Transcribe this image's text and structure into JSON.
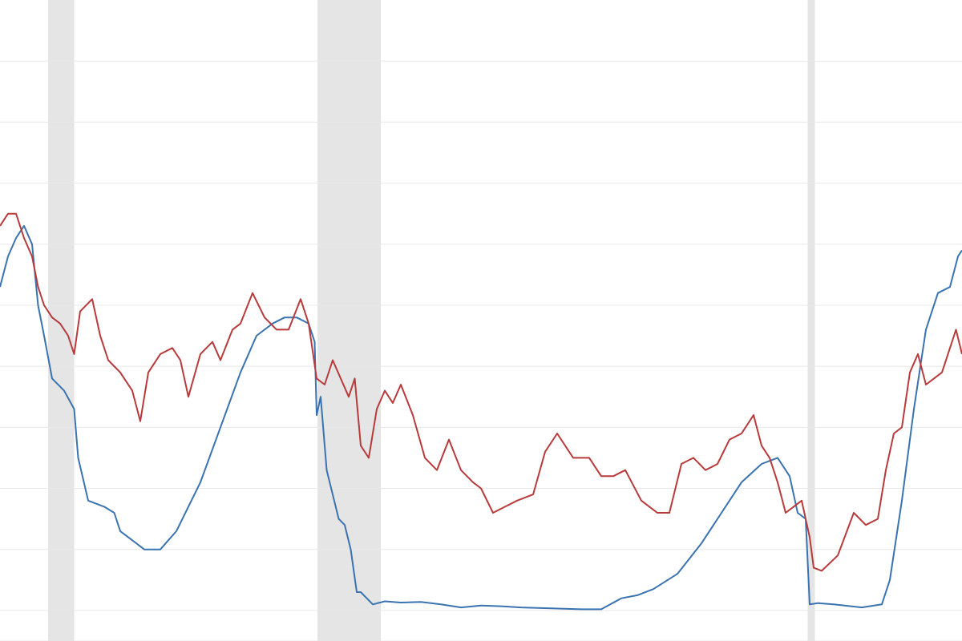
{
  "chart_data": {
    "type": "line",
    "title": "",
    "xlabel": "",
    "ylabel": "",
    "xlim": [
      2000.0,
      2024.0
    ],
    "ylim": [
      -0.5,
      10.0
    ],
    "grid": true,
    "legend": "none",
    "gridline_values": [
      9.0,
      8.0,
      7.0,
      6.0,
      5.0,
      4.0,
      3.0,
      2.0,
      1.0,
      0.0,
      -0.5
    ],
    "recessions": [
      {
        "start": 2001.2,
        "end": 2001.85
      },
      {
        "start": 2007.92,
        "end": 2009.5
      },
      {
        "start": 2020.15,
        "end": 2020.33
      }
    ],
    "series": [
      {
        "color": "#3a73b0",
        "x": [
          2000.0,
          2000.2,
          2000.4,
          2000.6,
          2000.8,
          2000.95,
          2001.1,
          2001.3,
          2001.6,
          2001.85,
          2001.95,
          2002.2,
          2002.6,
          2002.85,
          2003.0,
          2003.4,
          2003.6,
          2004.0,
          2004.4,
          2005.0,
          2005.5,
          2006.0,
          2006.4,
          2006.8,
          2007.1,
          2007.4,
          2007.7,
          2007.85,
          2007.9,
          2008.0,
          2008.15,
          2008.3,
          2008.45,
          2008.6,
          2008.75,
          2008.9,
          2009.0,
          2009.3,
          2009.6,
          2010.0,
          2010.5,
          2011.0,
          2011.5,
          2012.0,
          2012.5,
          2013.0,
          2013.5,
          2014.0,
          2014.5,
          2015.0,
          2015.5,
          2015.9,
          2016.3,
          2016.9,
          2017.5,
          2018.0,
          2018.5,
          2019.0,
          2019.4,
          2019.7,
          2019.9,
          2020.1,
          2020.2,
          2020.4,
          2020.8,
          2021.5,
          2022.0,
          2022.2,
          2022.5,
          2022.8,
          2023.1,
          2023.4,
          2023.7,
          2023.9,
          2024.0
        ],
        "y": [
          5.3,
          5.8,
          6.1,
          6.3,
          6.0,
          5.0,
          4.5,
          3.8,
          3.6,
          3.3,
          2.5,
          1.8,
          1.7,
          1.6,
          1.3,
          1.1,
          1.0,
          1.0,
          1.3,
          2.1,
          3.0,
          3.9,
          4.5,
          4.7,
          4.8,
          4.8,
          4.7,
          4.4,
          3.2,
          3.5,
          2.3,
          1.9,
          1.5,
          1.4,
          1.0,
          0.3,
          0.3,
          0.1,
          0.15,
          0.13,
          0.14,
          0.1,
          0.05,
          0.08,
          0.07,
          0.05,
          0.04,
          0.03,
          0.02,
          0.02,
          0.2,
          0.25,
          0.35,
          0.6,
          1.1,
          1.6,
          2.1,
          2.4,
          2.5,
          2.2,
          1.6,
          1.5,
          0.1,
          0.12,
          0.1,
          0.05,
          0.1,
          0.5,
          1.8,
          3.3,
          4.6,
          5.2,
          5.3,
          5.8,
          5.9
        ]
      },
      {
        "color": "#b83a3b",
        "x": [
          2000.0,
          2000.2,
          2000.4,
          2000.6,
          2000.8,
          2000.95,
          2001.1,
          2001.3,
          2001.5,
          2001.7,
          2001.85,
          2002.0,
          2002.3,
          2002.5,
          2002.7,
          2003.0,
          2003.3,
          2003.5,
          2003.7,
          2004.0,
          2004.3,
          2004.5,
          2004.7,
          2005.0,
          2005.3,
          2005.5,
          2005.8,
          2006.0,
          2006.3,
          2006.6,
          2006.9,
          2007.2,
          2007.5,
          2007.7,
          2007.9,
          2008.1,
          2008.3,
          2008.5,
          2008.7,
          2008.85,
          2009.0,
          2009.2,
          2009.4,
          2009.6,
          2009.8,
          2010.0,
          2010.3,
          2010.6,
          2010.9,
          2011.2,
          2011.5,
          2011.8,
          2012.0,
          2012.3,
          2012.6,
          2012.9,
          2013.3,
          2013.6,
          2013.9,
          2014.3,
          2014.7,
          2015.0,
          2015.3,
          2015.6,
          2016.0,
          2016.4,
          2016.7,
          2017.0,
          2017.3,
          2017.6,
          2017.9,
          2018.2,
          2018.5,
          2018.8,
          2019.0,
          2019.2,
          2019.4,
          2019.6,
          2019.8,
          2020.0,
          2020.2,
          2020.3,
          2020.5,
          2020.9,
          2021.3,
          2021.6,
          2021.9,
          2022.1,
          2022.3,
          2022.5,
          2022.7,
          2022.9,
          2023.1,
          2023.3,
          2023.5,
          2023.7,
          2023.85,
          2024.0
        ],
        "y": [
          6.3,
          6.5,
          6.5,
          6.1,
          5.8,
          5.3,
          5.0,
          4.8,
          4.7,
          4.5,
          4.2,
          4.9,
          5.1,
          4.5,
          4.1,
          3.9,
          3.6,
          3.1,
          3.9,
          4.2,
          4.3,
          4.1,
          3.5,
          4.2,
          4.4,
          4.1,
          4.6,
          4.7,
          5.2,
          4.8,
          4.6,
          4.6,
          5.1,
          4.7,
          3.8,
          3.7,
          4.1,
          3.8,
          3.5,
          3.8,
          2.7,
          2.5,
          3.3,
          3.6,
          3.4,
          3.7,
          3.2,
          2.5,
          2.3,
          2.8,
          2.3,
          2.1,
          2.0,
          1.6,
          1.7,
          1.8,
          1.9,
          2.6,
          2.9,
          2.5,
          2.5,
          2.2,
          2.2,
          2.3,
          1.8,
          1.6,
          1.6,
          2.4,
          2.5,
          2.3,
          2.4,
          2.8,
          2.9,
          3.2,
          2.7,
          2.5,
          2.1,
          1.6,
          1.7,
          1.8,
          1.2,
          0.7,
          0.65,
          0.9,
          1.6,
          1.4,
          1.5,
          2.3,
          2.9,
          3.0,
          3.9,
          4.2,
          3.7,
          3.8,
          3.9,
          4.3,
          4.6,
          4.2
        ]
      }
    ]
  }
}
